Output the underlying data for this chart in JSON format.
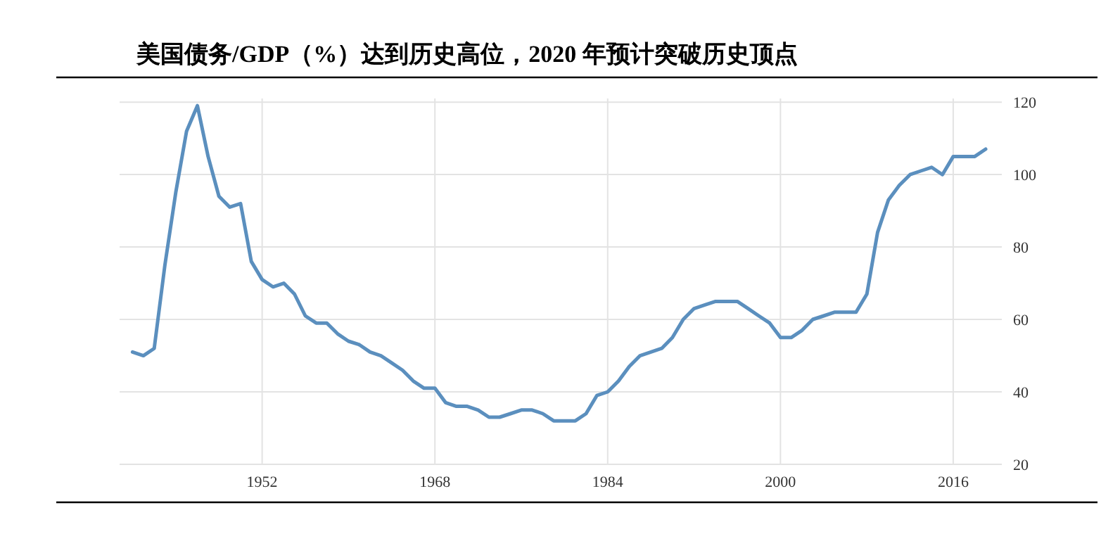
{
  "chart_data": {
    "type": "line",
    "title": "美国债务/GDP（%）达到历史高位，2020 年预计突破历史顶点",
    "x": [
      1940,
      1941,
      1942,
      1943,
      1944,
      1945,
      1946,
      1947,
      1948,
      1949,
      1950,
      1951,
      1952,
      1953,
      1954,
      1955,
      1956,
      1957,
      1958,
      1959,
      1960,
      1961,
      1962,
      1963,
      1964,
      1965,
      1966,
      1967,
      1968,
      1969,
      1970,
      1971,
      1972,
      1973,
      1974,
      1975,
      1976,
      1977,
      1978,
      1979,
      1980,
      1981,
      1982,
      1983,
      1984,
      1985,
      1986,
      1987,
      1988,
      1989,
      1990,
      1991,
      1992,
      1993,
      1994,
      1995,
      1996,
      1997,
      1998,
      1999,
      2000,
      2001,
      2002,
      2003,
      2004,
      2005,
      2006,
      2007,
      2008,
      2009,
      2010,
      2011,
      2012,
      2013,
      2014,
      2015,
      2016,
      2017,
      2018,
      2019
    ],
    "series": [
      {
        "color": "#5b8fbe",
        "values": [
          51,
          50,
          52,
          75,
          95,
          112,
          119,
          105,
          94,
          91,
          92,
          76,
          71,
          69,
          70,
          67,
          61,
          59,
          59,
          56,
          54,
          53,
          51,
          50,
          48,
          46,
          43,
          41,
          41,
          37,
          36,
          36,
          35,
          33,
          33,
          34,
          35,
          35,
          34,
          32,
          32,
          32,
          34,
          39,
          40,
          43,
          47,
          50,
          51,
          52,
          55,
          60,
          63,
          64,
          65,
          65,
          65,
          63,
          61,
          59,
          55,
          55,
          57,
          60,
          61,
          62,
          62,
          62,
          67,
          84,
          93,
          97,
          100,
          101,
          102,
          100,
          105,
          105,
          105,
          107
        ]
      }
    ],
    "xlim": [
      1938.8,
      2020.5
    ],
    "xticks": [
      1952,
      1968,
      1984,
      2000,
      2016
    ],
    "ylim": [
      20,
      121
    ],
    "yticks": [
      20,
      40,
      60,
      80,
      100,
      120
    ],
    "grid": true,
    "marker": "none",
    "line_style": "solid"
  }
}
